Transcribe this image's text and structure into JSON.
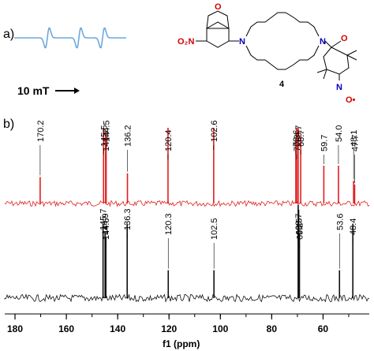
{
  "panels": {
    "a": "a)",
    "b": "b)"
  },
  "epr": {
    "scale_bar_label": "10 mT",
    "line_color": "#6fa8dc",
    "lines": [
      -1,
      0,
      1
    ]
  },
  "molecule": {
    "compound_number": "4",
    "atoms": {
      "no2": "O₂N",
      "n_ring": "N",
      "n_amine1": "N",
      "n_amine2": "N",
      "o_oxad1": "O",
      "o_oxad2": "N",
      "crown_o": "O",
      "carbonyl_o": "O",
      "nitroxide_n": "N",
      "nitroxide_o": "O•"
    }
  },
  "chart_data": {
    "type": "line",
    "xlabel": "f1 (ppm)",
    "xlim": [
      184,
      42
    ],
    "x_ticks": [
      180,
      160,
      140,
      120,
      100,
      80,
      60
    ],
    "series": [
      {
        "color": "#e02020",
        "peaks": [
          {
            "x": 170.2,
            "label": "170.2",
            "height": 0.35
          },
          {
            "x": 145.5,
            "label": "145.5",
            "height": 1.0
          },
          {
            "x": 144.7,
            "label": "144.7",
            "height": 0.95
          },
          {
            "x": 144.5,
            "label": "144.5",
            "height": 0.9
          },
          {
            "x": 136.2,
            "label": "136.2",
            "height": 0.4
          },
          {
            "x": 120.4,
            "label": "120.4",
            "height": 1.0
          },
          {
            "x": 102.6,
            "label": "102.6",
            "height": 1.0
          },
          {
            "x": 70.6,
            "label": "70.6",
            "height": 0.85
          },
          {
            "x": 70.3,
            "label": "70.3",
            "height": 1.0
          },
          {
            "x": 69.7,
            "label": "69.7",
            "height": 1.0
          },
          {
            "x": 68.7,
            "label": "68.7",
            "height": 0.9
          },
          {
            "x": 59.7,
            "label": "59.7",
            "height": 0.5
          },
          {
            "x": 54.0,
            "label": "54.0",
            "height": 0.5
          },
          {
            "x": 48.1,
            "label": "48.1",
            "height": 0.3
          },
          {
            "x": 47.7,
            "label": "47.7",
            "height": 0.25
          }
        ]
      },
      {
        "color": "#111111",
        "peaks": [
          {
            "x": 145.7,
            "label": "145.7",
            "height": 0.8
          },
          {
            "x": 144.9,
            "label": "144.9",
            "height": 0.7
          },
          {
            "x": 144.6,
            "label": "144.6",
            "height": 0.65
          },
          {
            "x": 136.3,
            "label": "136.3",
            "height": 0.8
          },
          {
            "x": 120.3,
            "label": "120.3",
            "height": 0.3
          },
          {
            "x": 102.5,
            "label": "102.5",
            "height": 0.3
          },
          {
            "x": 69.7,
            "label": "69.7",
            "height": 1.0
          },
          {
            "x": 69.5,
            "label": "69.5",
            "height": 0.95
          },
          {
            "x": 69.2,
            "label": "69.2",
            "height": 0.7
          },
          {
            "x": 53.6,
            "label": "53.6",
            "height": 0.3
          },
          {
            "x": 48.4,
            "label": "48.4",
            "height": 0.8
          }
        ]
      }
    ]
  }
}
